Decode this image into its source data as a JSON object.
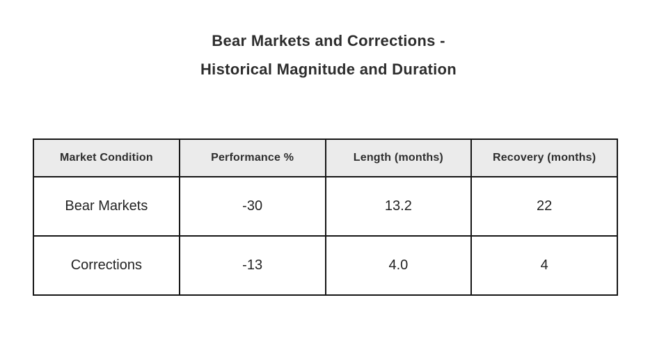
{
  "title": {
    "line1": "Bear Markets and Corrections -",
    "line2": "Historical Magnitude and Duration"
  },
  "table": {
    "headers": [
      "Market Condition",
      "Performance %",
      "Length (months)",
      "Recovery (months)"
    ],
    "rows": [
      [
        "Bear Markets",
        "-30",
        "13.2",
        "22"
      ],
      [
        "Corrections",
        "-13",
        "4.0",
        "4"
      ]
    ]
  },
  "colors": {
    "header_bg": "#ebebeb",
    "border": "#151515",
    "text": "#2d2d2d",
    "page_bg": "#ffffff"
  },
  "chart_data": {
    "type": "table",
    "title": "Bear Markets and Corrections - Historical Magnitude and Duration",
    "columns": [
      "Market Condition",
      "Performance %",
      "Length (months)",
      "Recovery (months)"
    ],
    "rows": [
      {
        "market_condition": "Bear Markets",
        "performance_pct": -30,
        "length_months": 13.2,
        "recovery_months": 22
      },
      {
        "market_condition": "Corrections",
        "performance_pct": -13,
        "length_months": 4.0,
        "recovery_months": 4
      }
    ],
    "layout": {
      "header_background": "#ebebeb",
      "grid": "on",
      "columns_equal_width": true
    }
  }
}
